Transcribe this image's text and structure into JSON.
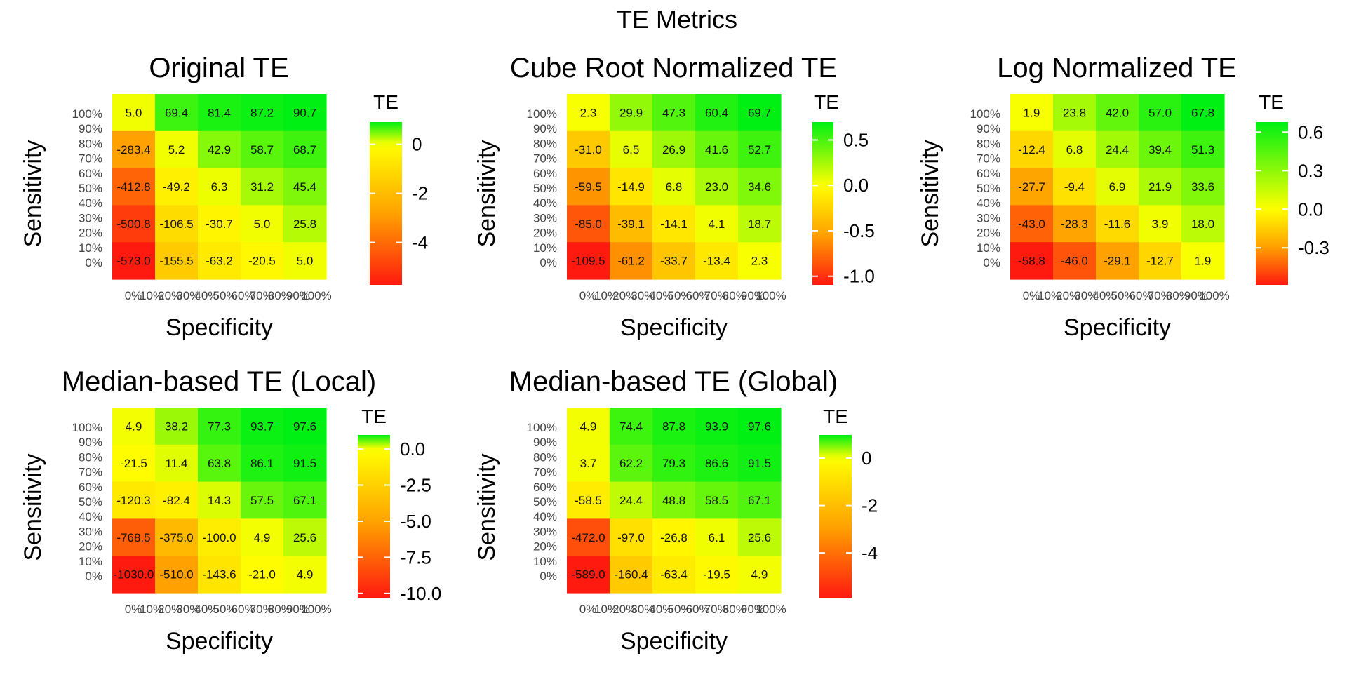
{
  "suptitle": "TE Metrics",
  "chart_data": [
    {
      "type": "heatmap",
      "title": "Original TE",
      "xlabel": "Specificity",
      "ylabel": "Sensitivity",
      "x_tick_labels": [
        "0%",
        "10%",
        "20%",
        "30%",
        "40%",
        "50%",
        "60%",
        "70%",
        "80%",
        "90%",
        "100%"
      ],
      "y_tick_labels": [
        "0%",
        "10%",
        "20%",
        "30%",
        "40%",
        "50%",
        "60%",
        "70%",
        "80%",
        "90%",
        "100%"
      ],
      "legend_title": "TE",
      "legend_ticks": [
        "0",
        "-2",
        "-4"
      ],
      "legend_tick_values": [
        0,
        -2,
        -4
      ],
      "scale_range": [
        -5.73,
        0.907
      ],
      "cells": [
        [
          "5.0",
          "69.4",
          "81.4",
          "87.2",
          "90.7"
        ],
        [
          "-283.4",
          "5.2",
          "42.9",
          "58.7",
          "68.7"
        ],
        [
          "-412.8",
          "-49.2",
          "6.3",
          "31.2",
          "45.4"
        ],
        [
          "-500.8",
          "-106.5",
          "-30.7",
          "5.0",
          "25.8"
        ],
        [
          "-573.0",
          "-155.5",
          "-63.2",
          "-20.5",
          "5.0"
        ]
      ]
    },
    {
      "type": "heatmap",
      "title": "Cube Root Normalized TE",
      "xlabel": "Specificity",
      "ylabel": "Sensitivity",
      "x_tick_labels": [
        "0%",
        "10%",
        "20%",
        "30%",
        "40%",
        "50%",
        "60%",
        "70%",
        "80%",
        "90%",
        "100%"
      ],
      "y_tick_labels": [
        "0%",
        "10%",
        "20%",
        "30%",
        "40%",
        "50%",
        "60%",
        "70%",
        "80%",
        "90%",
        "100%"
      ],
      "legend_title": "TE",
      "legend_ticks": [
        "0.5",
        "0.0",
        "-0.5",
        "-1.0"
      ],
      "legend_tick_values": [
        0.5,
        0,
        -0.5,
        -1.0
      ],
      "scale_range": [
        -1.095,
        0.697
      ],
      "cells": [
        [
          "2.3",
          "29.9",
          "47.3",
          "60.4",
          "69.7"
        ],
        [
          "-31.0",
          "6.5",
          "26.9",
          "41.6",
          "52.7"
        ],
        [
          "-59.5",
          "-14.9",
          "6.8",
          "23.0",
          "34.6"
        ],
        [
          "-85.0",
          "-39.1",
          "-14.1",
          "4.1",
          "18.7"
        ],
        [
          "-109.5",
          "-61.2",
          "-33.7",
          "-13.4",
          "2.3"
        ]
      ]
    },
    {
      "type": "heatmap",
      "title": "Log Normalized TE",
      "xlabel": "Specificity",
      "ylabel": "Sensitivity",
      "x_tick_labels": [
        "0%",
        "10%",
        "20%",
        "30%",
        "40%",
        "50%",
        "60%",
        "70%",
        "80%",
        "90%",
        "100%"
      ],
      "y_tick_labels": [
        "0%",
        "10%",
        "20%",
        "30%",
        "40%",
        "50%",
        "60%",
        "70%",
        "80%",
        "90%",
        "100%"
      ],
      "legend_title": "TE",
      "legend_ticks": [
        "0.6",
        "0.3",
        "0.0",
        "-0.3"
      ],
      "legend_tick_values": [
        0.6,
        0.3,
        0,
        -0.3
      ],
      "scale_range": [
        -0.588,
        0.678
      ],
      "cells": [
        [
          "1.9",
          "23.8",
          "42.0",
          "57.0",
          "67.8"
        ],
        [
          "-12.4",
          "6.8",
          "24.4",
          "39.4",
          "51.3"
        ],
        [
          "-27.7",
          "-9.4",
          "6.9",
          "21.9",
          "33.6"
        ],
        [
          "-43.0",
          "-28.3",
          "-11.6",
          "3.9",
          "18.0"
        ],
        [
          "-58.8",
          "-46.0",
          "-29.1",
          "-12.7",
          "1.9"
        ]
      ]
    },
    {
      "type": "heatmap",
      "title": "Median-based TE (Local)",
      "xlabel": "Specificity",
      "ylabel": "Sensitivity",
      "x_tick_labels": [
        "0%",
        "10%",
        "20%",
        "30%",
        "40%",
        "50%",
        "60%",
        "70%",
        "80%",
        "90%",
        "100%"
      ],
      "y_tick_labels": [
        "0%",
        "10%",
        "20%",
        "30%",
        "40%",
        "50%",
        "60%",
        "70%",
        "80%",
        "90%",
        "100%"
      ],
      "legend_title": "TE",
      "legend_ticks": [
        "0.0",
        "-2.5",
        "-5.0",
        "-7.5",
        "-10.0"
      ],
      "legend_tick_values": [
        0,
        -2.5,
        -5.0,
        -7.5,
        -10.0
      ],
      "scale_range": [
        -10.3,
        0.976
      ],
      "cells": [
        [
          "4.9",
          "38.2",
          "77.3",
          "93.7",
          "97.6"
        ],
        [
          "-21.5",
          "11.4",
          "63.8",
          "86.1",
          "91.5"
        ],
        [
          "-120.3",
          "-82.4",
          "14.3",
          "57.5",
          "67.1"
        ],
        [
          "-768.5",
          "-375.0",
          "-100.0",
          "4.9",
          "25.6"
        ],
        [
          "-1030.0",
          "-510.0",
          "-143.6",
          "-21.0",
          "4.9"
        ]
      ]
    },
    {
      "type": "heatmap",
      "title": "Median-based TE (Global)",
      "xlabel": "Specificity",
      "ylabel": "Sensitivity",
      "x_tick_labels": [
        "0%",
        "10%",
        "20%",
        "30%",
        "40%",
        "50%",
        "60%",
        "70%",
        "80%",
        "90%",
        "100%"
      ],
      "y_tick_labels": [
        "0%",
        "10%",
        "20%",
        "30%",
        "40%",
        "50%",
        "60%",
        "70%",
        "80%",
        "90%",
        "100%"
      ],
      "legend_title": "TE",
      "legend_ticks": [
        "0",
        "-2",
        "-4"
      ],
      "legend_tick_values": [
        0,
        -2,
        -4
      ],
      "scale_range": [
        -5.89,
        0.976
      ],
      "cells": [
        [
          "4.9",
          "74.4",
          "87.8",
          "93.9",
          "97.6"
        ],
        [
          "3.7",
          "62.2",
          "79.3",
          "86.6",
          "91.5"
        ],
        [
          "-58.5",
          "24.4",
          "48.8",
          "58.5",
          "67.1"
        ],
        [
          "-472.0",
          "-97.0",
          "-26.8",
          "6.1",
          "25.6"
        ],
        [
          "-589.0",
          "-160.4",
          "-63.4",
          "-19.5",
          "4.9"
        ]
      ]
    }
  ]
}
